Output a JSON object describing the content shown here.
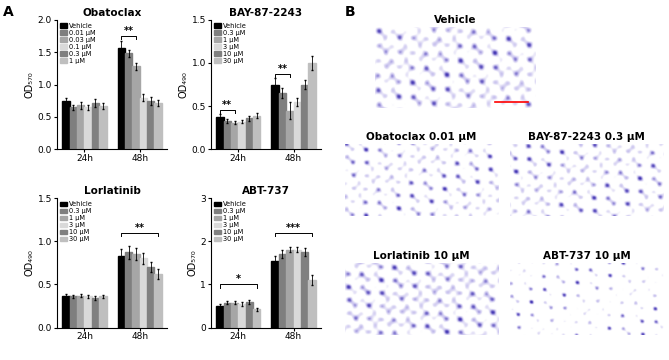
{
  "panel_labels": [
    "A",
    "B"
  ],
  "chart_data": [
    {
      "type": "bar",
      "title": "Obatoclax",
      "y_label": "OD₅₇₀",
      "categories": [
        "24h",
        "48h"
      ],
      "ylim": [
        0,
        2.0
      ],
      "yticks": [
        {
          "value": 0,
          "label": "0.0"
        },
        0.5,
        {
          "value": 1.0,
          "label": "1.0"
        },
        1.5,
        {
          "value": 2.0,
          "label": "2.0"
        }
      ],
      "legend": "upper left",
      "series": [
        {
          "name": "Vehicle",
          "color": "#000000",
          "values": [
            0.75,
            1.57
          ],
          "errors": [
            0.04,
            0.1
          ]
        },
        {
          "name": "0.01 μM",
          "color": "#7f7f7f",
          "values": [
            0.65,
            1.48
          ],
          "errors": [
            0.04,
            0.05
          ]
        },
        {
          "name": "0.03 μM",
          "color": "#a6a6a6",
          "values": [
            0.68,
            1.28
          ],
          "errors": [
            0.05,
            0.06
          ]
        },
        {
          "name": "0.1 μM",
          "color": "#d9d9d9",
          "values": [
            0.65,
            0.8
          ],
          "errors": [
            0.04,
            0.05
          ]
        },
        {
          "name": "0.3 μM",
          "color": "#808080",
          "values": [
            0.72,
            0.75
          ],
          "errors": [
            0.06,
            0.06
          ]
        },
        {
          "name": "1 μM",
          "color": "#bfbfbf",
          "values": [
            0.67,
            0.72
          ],
          "errors": [
            0.05,
            0.05
          ]
        }
      ],
      "significance": [
        {
          "category": "48h",
          "from": 0,
          "to": 2,
          "y": 1.75,
          "text": "**"
        }
      ]
    },
    {
      "type": "bar",
      "title": "BAY-87-2243",
      "y_label": "OD₄₉₀",
      "categories": [
        "24h",
        "48h"
      ],
      "ylim": [
        0,
        1.5
      ],
      "yticks": [
        {
          "value": 0,
          "label": "0.0"
        },
        0.5,
        {
          "value": 1.0,
          "label": "1.0"
        },
        1.5
      ],
      "legend": "upper left",
      "series": [
        {
          "name": "Vehicle",
          "color": "#000000",
          "values": [
            0.38,
            0.75
          ],
          "errors": [
            0.03,
            0.08
          ]
        },
        {
          "name": "0.3 μM",
          "color": "#7f7f7f",
          "values": [
            0.33,
            0.65
          ],
          "errors": [
            0.02,
            0.06
          ]
        },
        {
          "name": "1 μM",
          "color": "#a6a6a6",
          "values": [
            0.31,
            0.45
          ],
          "errors": [
            0.02,
            0.1
          ]
        },
        {
          "name": "3 μM",
          "color": "#d9d9d9",
          "values": [
            0.32,
            0.55
          ],
          "errors": [
            0.02,
            0.05
          ]
        },
        {
          "name": "10 μM",
          "color": "#808080",
          "values": [
            0.36,
            0.75
          ],
          "errors": [
            0.03,
            0.05
          ]
        },
        {
          "name": "30 μM",
          "color": "#bfbfbf",
          "values": [
            0.39,
            1.0
          ],
          "errors": [
            0.03,
            0.08
          ]
        }
      ],
      "significance": [
        {
          "category": "24h",
          "from": 0,
          "to": 2,
          "y": 0.46,
          "text": "**"
        },
        {
          "category": "48h",
          "from": 0,
          "to": 2,
          "y": 0.87,
          "text": "**"
        }
      ]
    },
    {
      "type": "bar",
      "title": "Lorlatinib",
      "y_label": "OD₄₉₀",
      "categories": [
        "24h",
        "48h"
      ],
      "ylim": [
        0,
        1.5
      ],
      "yticks": [
        {
          "value": 0,
          "label": "0.0"
        },
        0.5,
        {
          "value": 1.0,
          "label": "1.0"
        },
        1.5
      ],
      "legend": "upper left",
      "series": [
        {
          "name": "Vehicle",
          "color": "#000000",
          "values": [
            0.37,
            0.83
          ],
          "errors": [
            0.02,
            0.08
          ]
        },
        {
          "name": "0.3 μM",
          "color": "#7f7f7f",
          "values": [
            0.36,
            0.87
          ],
          "errors": [
            0.02,
            0.08
          ]
        },
        {
          "name": "1 μM",
          "color": "#a6a6a6",
          "values": [
            0.37,
            0.85
          ],
          "errors": [
            0.02,
            0.07
          ]
        },
        {
          "name": "3 μM",
          "color": "#d9d9d9",
          "values": [
            0.36,
            0.8
          ],
          "errors": [
            0.02,
            0.06
          ]
        },
        {
          "name": "10 μM",
          "color": "#808080",
          "values": [
            0.34,
            0.7
          ],
          "errors": [
            0.02,
            0.06
          ]
        },
        {
          "name": "30 μM",
          "color": "#bfbfbf",
          "values": [
            0.36,
            0.62
          ],
          "errors": [
            0.02,
            0.06
          ]
        }
      ],
      "significance": [
        {
          "category": "48h",
          "from": 0,
          "to": 5,
          "y": 1.1,
          "text": "**"
        }
      ]
    },
    {
      "type": "bar",
      "title": "ABT-737",
      "y_label": "OD₅₇₀",
      "categories": [
        "24h",
        "48h"
      ],
      "ylim": [
        0,
        3
      ],
      "yticks": [
        0,
        1,
        2,
        3
      ],
      "legend": "upper left",
      "series": [
        {
          "name": "Vehicle",
          "color": "#000000",
          "values": [
            0.5,
            1.55
          ],
          "errors": [
            0.04,
            0.1
          ]
        },
        {
          "name": "0.3 μM",
          "color": "#7f7f7f",
          "values": [
            0.58,
            1.7
          ],
          "errors": [
            0.04,
            0.1
          ]
        },
        {
          "name": "1 μM",
          "color": "#a6a6a6",
          "values": [
            0.58,
            1.8
          ],
          "errors": [
            0.04,
            0.06
          ]
        },
        {
          "name": "3 μM",
          "color": "#d9d9d9",
          "values": [
            0.55,
            1.8
          ],
          "errors": [
            0.04,
            0.06
          ]
        },
        {
          "name": "10 μM",
          "color": "#808080",
          "values": [
            0.6,
            1.75
          ],
          "errors": [
            0.05,
            0.1
          ]
        },
        {
          "name": "30 μM",
          "color": "#bfbfbf",
          "values": [
            0.42,
            1.1
          ],
          "errors": [
            0.04,
            0.12
          ]
        }
      ],
      "significance": [
        {
          "category": "24h",
          "from": 0,
          "to": 5,
          "y": 1.0,
          "text": "*"
        },
        {
          "category": "48h",
          "from": 0,
          "to": 5,
          "y": 2.2,
          "text": "***"
        }
      ]
    }
  ],
  "images": [
    {
      "title": "Vehicle"
    },
    {
      "title": "Obatoclax 0.01 μM"
    },
    {
      "title": "BAY-87-2243 0.3 μM"
    },
    {
      "title": "Lorlatinib 10 μM"
    },
    {
      "title": "ABT-737 10 μM"
    }
  ]
}
